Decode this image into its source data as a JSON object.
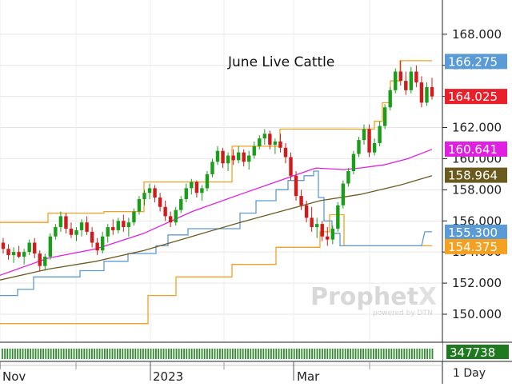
{
  "chart_data": {
    "type": "candlestick",
    "title": "June Live Cattle",
    "timeframe": "1 Day",
    "volume_label": "347738",
    "watermark": {
      "brand_prefix": "Prophet",
      "brand_suffix": "X",
      "tagline": "powered by DTN"
    },
    "ylim": [
      148.2,
      170.2
    ],
    "y_ticks": [
      "168.000",
      "166.000",
      "164.000",
      "162.000",
      "160.000",
      "158.000",
      "156.000",
      "154.000",
      "152.000",
      "150.000"
    ],
    "x_labels": [
      "Nov",
      "2023",
      "Mar",
      "1 Day"
    ],
    "price_tags": [
      {
        "label": "166.275",
        "value": 166.275,
        "color": "#5b9bd5"
      },
      {
        "label": "164.025",
        "value": 164.025,
        "color": "#e8202a"
      },
      {
        "label": "160.641",
        "value": 160.641,
        "color": "#e020e0"
      },
      {
        "label": "158.964",
        "value": 158.964,
        "color": "#6b5a1e"
      },
      {
        "label": "155.300",
        "value": 155.3,
        "color": "#5b9bd5"
      },
      {
        "label": "154.375",
        "value": 154.375,
        "color": "#f4a020"
      }
    ],
    "candles": [
      [
        154.6,
        154.9,
        153.9,
        154.2
      ],
      [
        154.2,
        154.5,
        153.5,
        153.8
      ],
      [
        153.8,
        154.3,
        153.3,
        154.0
      ],
      [
        154.0,
        154.4,
        153.6,
        153.7
      ],
      [
        153.7,
        154.2,
        153.2,
        154.0
      ],
      [
        154.0,
        154.8,
        153.8,
        154.6
      ],
      [
        154.6,
        154.9,
        153.6,
        153.9
      ],
      [
        153.9,
        154.1,
        152.8,
        153.1
      ],
      [
        153.1,
        153.9,
        152.8,
        153.7
      ],
      [
        153.7,
        155.2,
        153.5,
        155.0
      ],
      [
        155.0,
        155.8,
        154.8,
        155.6
      ],
      [
        155.6,
        156.6,
        155.3,
        156.3
      ],
      [
        156.3,
        156.5,
        155.2,
        155.5
      ],
      [
        155.5,
        155.9,
        154.9,
        155.1
      ],
      [
        155.1,
        155.6,
        154.7,
        155.4
      ],
      [
        155.4,
        156.1,
        155.0,
        155.9
      ],
      [
        155.9,
        156.3,
        155.1,
        155.3
      ],
      [
        155.3,
        155.6,
        154.3,
        154.6
      ],
      [
        154.6,
        154.9,
        153.8,
        154.1
      ],
      [
        154.1,
        155.3,
        153.9,
        155.0
      ],
      [
        155.0,
        155.8,
        154.6,
        155.6
      ],
      [
        155.6,
        156.1,
        155.1,
        155.4
      ],
      [
        155.4,
        156.2,
        155.2,
        156.0
      ],
      [
        156.0,
        156.4,
        155.3,
        155.6
      ],
      [
        155.6,
        156.2,
        155.0,
        155.9
      ],
      [
        155.9,
        156.8,
        155.7,
        156.6
      ],
      [
        156.6,
        157.6,
        156.4,
        157.4
      ],
      [
        157.4,
        158.0,
        157.0,
        157.8
      ],
      [
        157.8,
        158.4,
        157.4,
        158.1
      ],
      [
        158.1,
        158.3,
        157.2,
        157.5
      ],
      [
        157.5,
        157.8,
        156.6,
        156.9
      ],
      [
        156.9,
        157.3,
        156.0,
        156.3
      ],
      [
        156.3,
        156.6,
        155.6,
        155.9
      ],
      [
        155.9,
        156.9,
        155.7,
        156.7
      ],
      [
        156.7,
        157.6,
        156.5,
        157.4
      ],
      [
        157.4,
        158.4,
        157.2,
        158.1
      ],
      [
        158.1,
        158.7,
        157.7,
        158.5
      ],
      [
        158.5,
        158.6,
        157.5,
        157.8
      ],
      [
        157.8,
        158.3,
        157.3,
        158.1
      ],
      [
        158.1,
        159.2,
        157.9,
        159.0
      ],
      [
        159.0,
        160.0,
        158.8,
        159.8
      ],
      [
        159.8,
        160.8,
        159.6,
        160.5
      ],
      [
        160.5,
        160.7,
        159.4,
        159.7
      ],
      [
        159.7,
        160.4,
        159.2,
        160.2
      ],
      [
        160.2,
        160.6,
        159.6,
        159.9
      ],
      [
        159.9,
        160.8,
        159.7,
        160.4
      ],
      [
        160.4,
        160.6,
        159.5,
        159.8
      ],
      [
        159.8,
        160.5,
        159.3,
        160.2
      ],
      [
        160.2,
        161.1,
        160.0,
        160.8
      ],
      [
        160.8,
        161.5,
        160.6,
        161.3
      ],
      [
        161.3,
        161.9,
        160.9,
        161.6
      ],
      [
        161.6,
        161.8,
        160.6,
        160.9
      ],
      [
        160.9,
        161.3,
        160.3,
        161.1
      ],
      [
        161.1,
        161.6,
        160.4,
        160.7
      ],
      [
        160.7,
        161.0,
        159.7,
        160.1
      ],
      [
        160.1,
        160.4,
        158.6,
        158.9
      ],
      [
        158.9,
        159.2,
        157.3,
        157.6
      ],
      [
        157.6,
        158.0,
        156.7,
        157.0
      ],
      [
        157.0,
        157.3,
        155.9,
        156.2
      ],
      [
        156.2,
        156.9,
        155.3,
        155.6
      ],
      [
        155.6,
        156.2,
        154.9,
        155.8
      ],
      [
        155.8,
        156.0,
        154.7,
        155.0
      ],
      [
        155.0,
        155.6,
        154.4,
        154.8
      ],
      [
        154.8,
        155.7,
        154.5,
        155.5
      ],
      [
        155.5,
        157.2,
        155.3,
        157.0
      ],
      [
        157.0,
        158.6,
        156.8,
        158.4
      ],
      [
        158.4,
        159.4,
        158.2,
        159.2
      ],
      [
        159.2,
        160.5,
        159.0,
        160.3
      ],
      [
        160.3,
        161.4,
        160.1,
        161.2
      ],
      [
        161.2,
        162.2,
        160.9,
        161.9
      ],
      [
        161.9,
        162.2,
        160.1,
        160.4
      ],
      [
        160.4,
        161.3,
        160.2,
        161.0
      ],
      [
        161.0,
        162.4,
        160.8,
        162.1
      ],
      [
        162.1,
        163.5,
        161.9,
        163.3
      ],
      [
        163.3,
        164.6,
        163.1,
        164.4
      ],
      [
        164.4,
        165.8,
        164.2,
        165.6
      ],
      [
        165.6,
        166.3,
        164.7,
        165.0
      ],
      [
        165.0,
        165.6,
        164.1,
        164.4
      ],
      [
        164.4,
        165.9,
        164.2,
        165.6
      ],
      [
        165.6,
        166.0,
        164.6,
        164.9
      ],
      [
        164.9,
        165.3,
        163.3,
        163.6
      ],
      [
        163.6,
        164.9,
        163.4,
        164.6
      ],
      [
        164.6,
        165.2,
        163.8,
        164.0
      ]
    ],
    "series": [
      {
        "name": "",
        "color": "#f4a020",
        "values": [
          [
            0,
            155.9
          ],
          [
            60,
            155.9
          ],
          [
            60,
            156.5
          ],
          [
            130,
            156.5
          ],
          [
            130,
            156.6
          ],
          [
            180,
            156.6
          ],
          [
            180,
            158.5
          ],
          [
            290,
            158.5
          ],
          [
            290,
            160.8
          ],
          [
            350,
            160.8
          ],
          [
            350,
            161.9
          ],
          [
            468,
            161.9
          ],
          [
            468,
            162.4
          ],
          [
            478,
            162.4
          ],
          [
            478,
            163.6
          ],
          [
            488,
            163.6
          ],
          [
            488,
            165.0
          ],
          [
            500,
            165.0
          ],
          [
            500,
            166.3
          ],
          [
            540,
            166.3
          ]
        ]
      },
      {
        "name": "",
        "color": "#f4a020",
        "values": [
          [
            0,
            149.4
          ],
          [
            185,
            149.4
          ],
          [
            185,
            151.2
          ],
          [
            220,
            151.2
          ],
          [
            220,
            152.4
          ],
          [
            290,
            152.4
          ],
          [
            290,
            153.2
          ],
          [
            345,
            153.2
          ],
          [
            345,
            154.3
          ],
          [
            400,
            154.3
          ],
          [
            400,
            155.3
          ],
          [
            412,
            155.3
          ],
          [
            412,
            156.4
          ],
          [
            430,
            156.4
          ],
          [
            430,
            154.4
          ],
          [
            540,
            154.4
          ]
        ]
      },
      {
        "name": "",
        "color": "#5b9bd5",
        "values": [
          [
            0,
            151.2
          ],
          [
            22,
            151.2
          ],
          [
            22,
            151.6
          ],
          [
            42,
            151.6
          ],
          [
            42,
            152.4
          ],
          [
            100,
            152.4
          ],
          [
            100,
            152.8
          ],
          [
            130,
            152.8
          ],
          [
            130,
            153.4
          ],
          [
            160,
            153.4
          ],
          [
            160,
            153.9
          ],
          [
            195,
            153.9
          ],
          [
            195,
            154.4
          ],
          [
            210,
            154.4
          ],
          [
            210,
            155.1
          ],
          [
            235,
            155.1
          ],
          [
            235,
            155.5
          ],
          [
            300,
            155.5
          ],
          [
            300,
            156.5
          ],
          [
            320,
            156.5
          ],
          [
            320,
            157.3
          ],
          [
            345,
            157.3
          ],
          [
            345,
            158.0
          ],
          [
            360,
            158.0
          ],
          [
            360,
            158.6
          ],
          [
            380,
            158.6
          ],
          [
            380,
            158.9
          ],
          [
            392,
            158.9
          ],
          [
            392,
            159.2
          ],
          [
            398,
            159.2
          ],
          [
            398,
            157.5
          ],
          [
            405,
            157.5
          ],
          [
            405,
            156.0
          ],
          [
            415,
            156.0
          ],
          [
            415,
            155.2
          ],
          [
            425,
            155.2
          ],
          [
            425,
            154.4
          ],
          [
            440,
            154.4
          ],
          [
            440,
            154.4
          ],
          [
            527,
            154.4
          ],
          [
            527,
            154.4
          ],
          [
            531,
            155.3
          ],
          [
            540,
            155.3
          ]
        ]
      },
      {
        "name": "",
        "color": "#e020e0",
        "values": [
          [
            0,
            152.5
          ],
          [
            60,
            153.6
          ],
          [
            120,
            154.2
          ],
          [
            180,
            155.2
          ],
          [
            240,
            156.6
          ],
          [
            300,
            157.7
          ],
          [
            350,
            158.6
          ],
          [
            395,
            159.4
          ],
          [
            430,
            159.3
          ],
          [
            450,
            159.4
          ],
          [
            480,
            159.6
          ],
          [
            510,
            160.0
          ],
          [
            540,
            160.6
          ]
        ]
      },
      {
        "name": "",
        "color": "#6b5a1e",
        "values": [
          [
            0,
            152.2
          ],
          [
            60,
            152.9
          ],
          [
            120,
            153.4
          ],
          [
            180,
            154.1
          ],
          [
            240,
            155.0
          ],
          [
            300,
            155.9
          ],
          [
            350,
            156.6
          ],
          [
            400,
            157.3
          ],
          [
            450,
            157.7
          ],
          [
            500,
            158.3
          ],
          [
            540,
            158.9
          ]
        ]
      }
    ]
  }
}
